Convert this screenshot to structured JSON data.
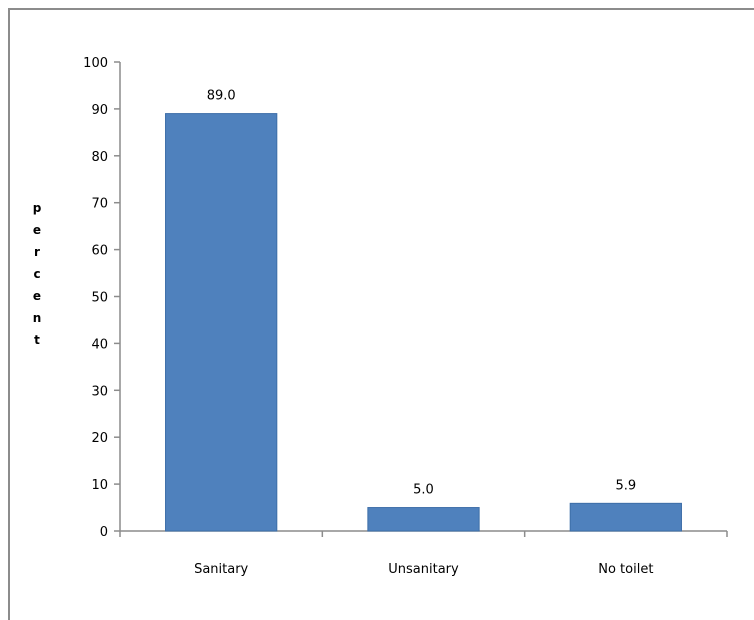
{
  "chart_data": {
    "type": "bar",
    "categories": [
      "Sanitary",
      "Unsanitary",
      "No toilet"
    ],
    "values": [
      89.0,
      5.0,
      5.9
    ],
    "data_labels": [
      "89.0",
      "5.0",
      "5.9"
    ],
    "ylabel": "percent",
    "xlabel": "",
    "ylim": [
      0,
      100
    ],
    "yticks": [
      0,
      10,
      20,
      30,
      40,
      50,
      60,
      70,
      80,
      90,
      100
    ],
    "grid": false,
    "legend": "none",
    "bar_color": "#4f81bd"
  }
}
